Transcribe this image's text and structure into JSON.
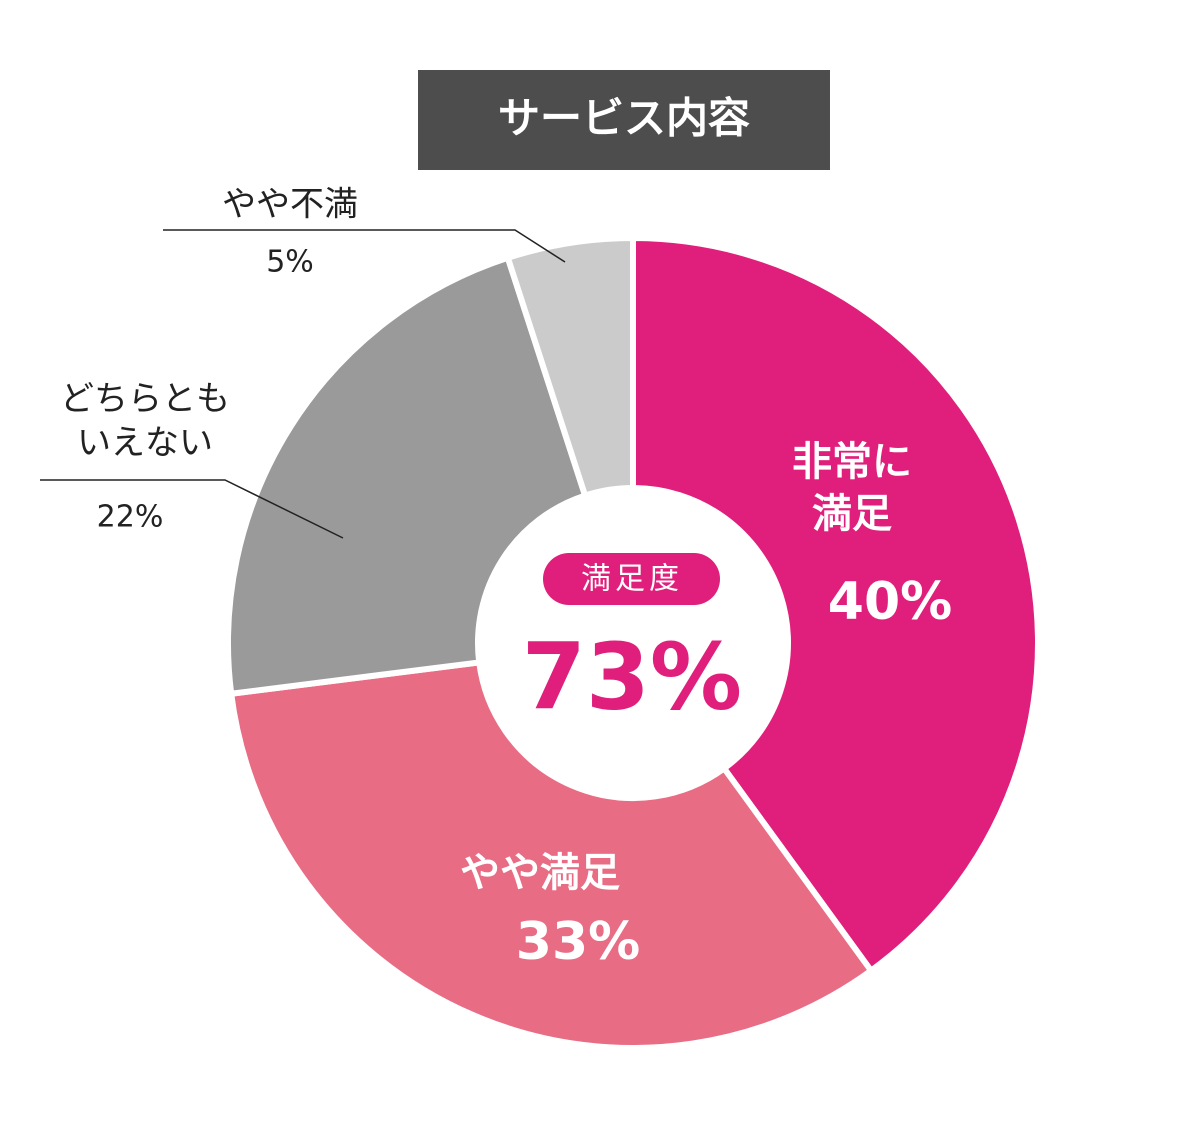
{
  "chart_data": {
    "type": "donut",
    "title": "サービス内容",
    "categories": [
      "非常に\n満足",
      "やや満足",
      "どちらとも\nいえない",
      "やや不満"
    ],
    "values": [
      40,
      33,
      22,
      5
    ],
    "value_labels": [
      "40%",
      "33%",
      "22%",
      "5%"
    ],
    "colors": [
      "#e01f7c",
      "#e86c84",
      "#9a9a9a",
      "#cbcbcb"
    ],
    "center": {
      "label": "満足度",
      "value": 73,
      "value_label": "73%"
    }
  }
}
